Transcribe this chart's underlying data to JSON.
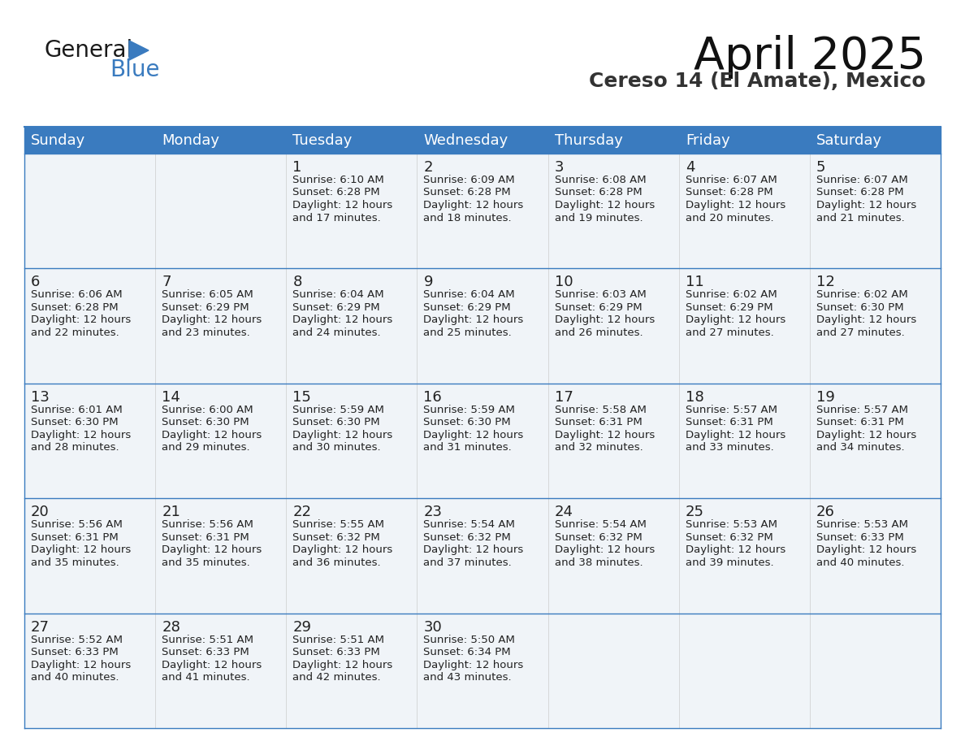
{
  "title": "April 2025",
  "subtitle": "Cereso 14 (El Amate), Mexico",
  "days_of_week": [
    "Sunday",
    "Monday",
    "Tuesday",
    "Wednesday",
    "Thursday",
    "Friday",
    "Saturday"
  ],
  "header_bg": "#3a7bbf",
  "header_text": "#ffffff",
  "row_bg": "#f0f4f8",
  "border_color": "#3a7bbf",
  "text_color": "#222222",
  "calendar_data": [
    [
      {
        "day": "",
        "sunrise": "",
        "sunset": "",
        "daylight": ""
      },
      {
        "day": "",
        "sunrise": "",
        "sunset": "",
        "daylight": ""
      },
      {
        "day": "1",
        "sunrise": "6:10 AM",
        "sunset": "6:28 PM",
        "daylight": "12 hours and 17 minutes."
      },
      {
        "day": "2",
        "sunrise": "6:09 AM",
        "sunset": "6:28 PM",
        "daylight": "12 hours and 18 minutes."
      },
      {
        "day": "3",
        "sunrise": "6:08 AM",
        "sunset": "6:28 PM",
        "daylight": "12 hours and 19 minutes."
      },
      {
        "day": "4",
        "sunrise": "6:07 AM",
        "sunset": "6:28 PM",
        "daylight": "12 hours and 20 minutes."
      },
      {
        "day": "5",
        "sunrise": "6:07 AM",
        "sunset": "6:28 PM",
        "daylight": "12 hours and 21 minutes."
      }
    ],
    [
      {
        "day": "6",
        "sunrise": "6:06 AM",
        "sunset": "6:28 PM",
        "daylight": "12 hours and 22 minutes."
      },
      {
        "day": "7",
        "sunrise": "6:05 AM",
        "sunset": "6:29 PM",
        "daylight": "12 hours and 23 minutes."
      },
      {
        "day": "8",
        "sunrise": "6:04 AM",
        "sunset": "6:29 PM",
        "daylight": "12 hours and 24 minutes."
      },
      {
        "day": "9",
        "sunrise": "6:04 AM",
        "sunset": "6:29 PM",
        "daylight": "12 hours and 25 minutes."
      },
      {
        "day": "10",
        "sunrise": "6:03 AM",
        "sunset": "6:29 PM",
        "daylight": "12 hours and 26 minutes."
      },
      {
        "day": "11",
        "sunrise": "6:02 AM",
        "sunset": "6:29 PM",
        "daylight": "12 hours and 27 minutes."
      },
      {
        "day": "12",
        "sunrise": "6:02 AM",
        "sunset": "6:30 PM",
        "daylight": "12 hours and 27 minutes."
      }
    ],
    [
      {
        "day": "13",
        "sunrise": "6:01 AM",
        "sunset": "6:30 PM",
        "daylight": "12 hours and 28 minutes."
      },
      {
        "day": "14",
        "sunrise": "6:00 AM",
        "sunset": "6:30 PM",
        "daylight": "12 hours and 29 minutes."
      },
      {
        "day": "15",
        "sunrise": "5:59 AM",
        "sunset": "6:30 PM",
        "daylight": "12 hours and 30 minutes."
      },
      {
        "day": "16",
        "sunrise": "5:59 AM",
        "sunset": "6:30 PM",
        "daylight": "12 hours and 31 minutes."
      },
      {
        "day": "17",
        "sunrise": "5:58 AM",
        "sunset": "6:31 PM",
        "daylight": "12 hours and 32 minutes."
      },
      {
        "day": "18",
        "sunrise": "5:57 AM",
        "sunset": "6:31 PM",
        "daylight": "12 hours and 33 minutes."
      },
      {
        "day": "19",
        "sunrise": "5:57 AM",
        "sunset": "6:31 PM",
        "daylight": "12 hours and 34 minutes."
      }
    ],
    [
      {
        "day": "20",
        "sunrise": "5:56 AM",
        "sunset": "6:31 PM",
        "daylight": "12 hours and 35 minutes."
      },
      {
        "day": "21",
        "sunrise": "5:56 AM",
        "sunset": "6:31 PM",
        "daylight": "12 hours and 35 minutes."
      },
      {
        "day": "22",
        "sunrise": "5:55 AM",
        "sunset": "6:32 PM",
        "daylight": "12 hours and 36 minutes."
      },
      {
        "day": "23",
        "sunrise": "5:54 AM",
        "sunset": "6:32 PM",
        "daylight": "12 hours and 37 minutes."
      },
      {
        "day": "24",
        "sunrise": "5:54 AM",
        "sunset": "6:32 PM",
        "daylight": "12 hours and 38 minutes."
      },
      {
        "day": "25",
        "sunrise": "5:53 AM",
        "sunset": "6:32 PM",
        "daylight": "12 hours and 39 minutes."
      },
      {
        "day": "26",
        "sunrise": "5:53 AM",
        "sunset": "6:33 PM",
        "daylight": "12 hours and 40 minutes."
      }
    ],
    [
      {
        "day": "27",
        "sunrise": "5:52 AM",
        "sunset": "6:33 PM",
        "daylight": "12 hours and 40 minutes."
      },
      {
        "day": "28",
        "sunrise": "5:51 AM",
        "sunset": "6:33 PM",
        "daylight": "12 hours and 41 minutes."
      },
      {
        "day": "29",
        "sunrise": "5:51 AM",
        "sunset": "6:33 PM",
        "daylight": "12 hours and 42 minutes."
      },
      {
        "day": "30",
        "sunrise": "5:50 AM",
        "sunset": "6:34 PM",
        "daylight": "12 hours and 43 minutes."
      },
      {
        "day": "",
        "sunrise": "",
        "sunset": "",
        "daylight": ""
      },
      {
        "day": "",
        "sunrise": "",
        "sunset": "",
        "daylight": ""
      },
      {
        "day": "",
        "sunrise": "",
        "sunset": "",
        "daylight": ""
      }
    ]
  ],
  "logo_text_general": "General",
  "logo_text_blue": "Blue",
  "logo_color_general": "#1a1a1a",
  "logo_color_blue": "#3a7bbf",
  "logo_triangle_color": "#3a7bbf",
  "title_fontsize": 40,
  "subtitle_fontsize": 18,
  "header_fontsize": 13,
  "day_num_fontsize": 13,
  "cell_text_fontsize": 9.5
}
